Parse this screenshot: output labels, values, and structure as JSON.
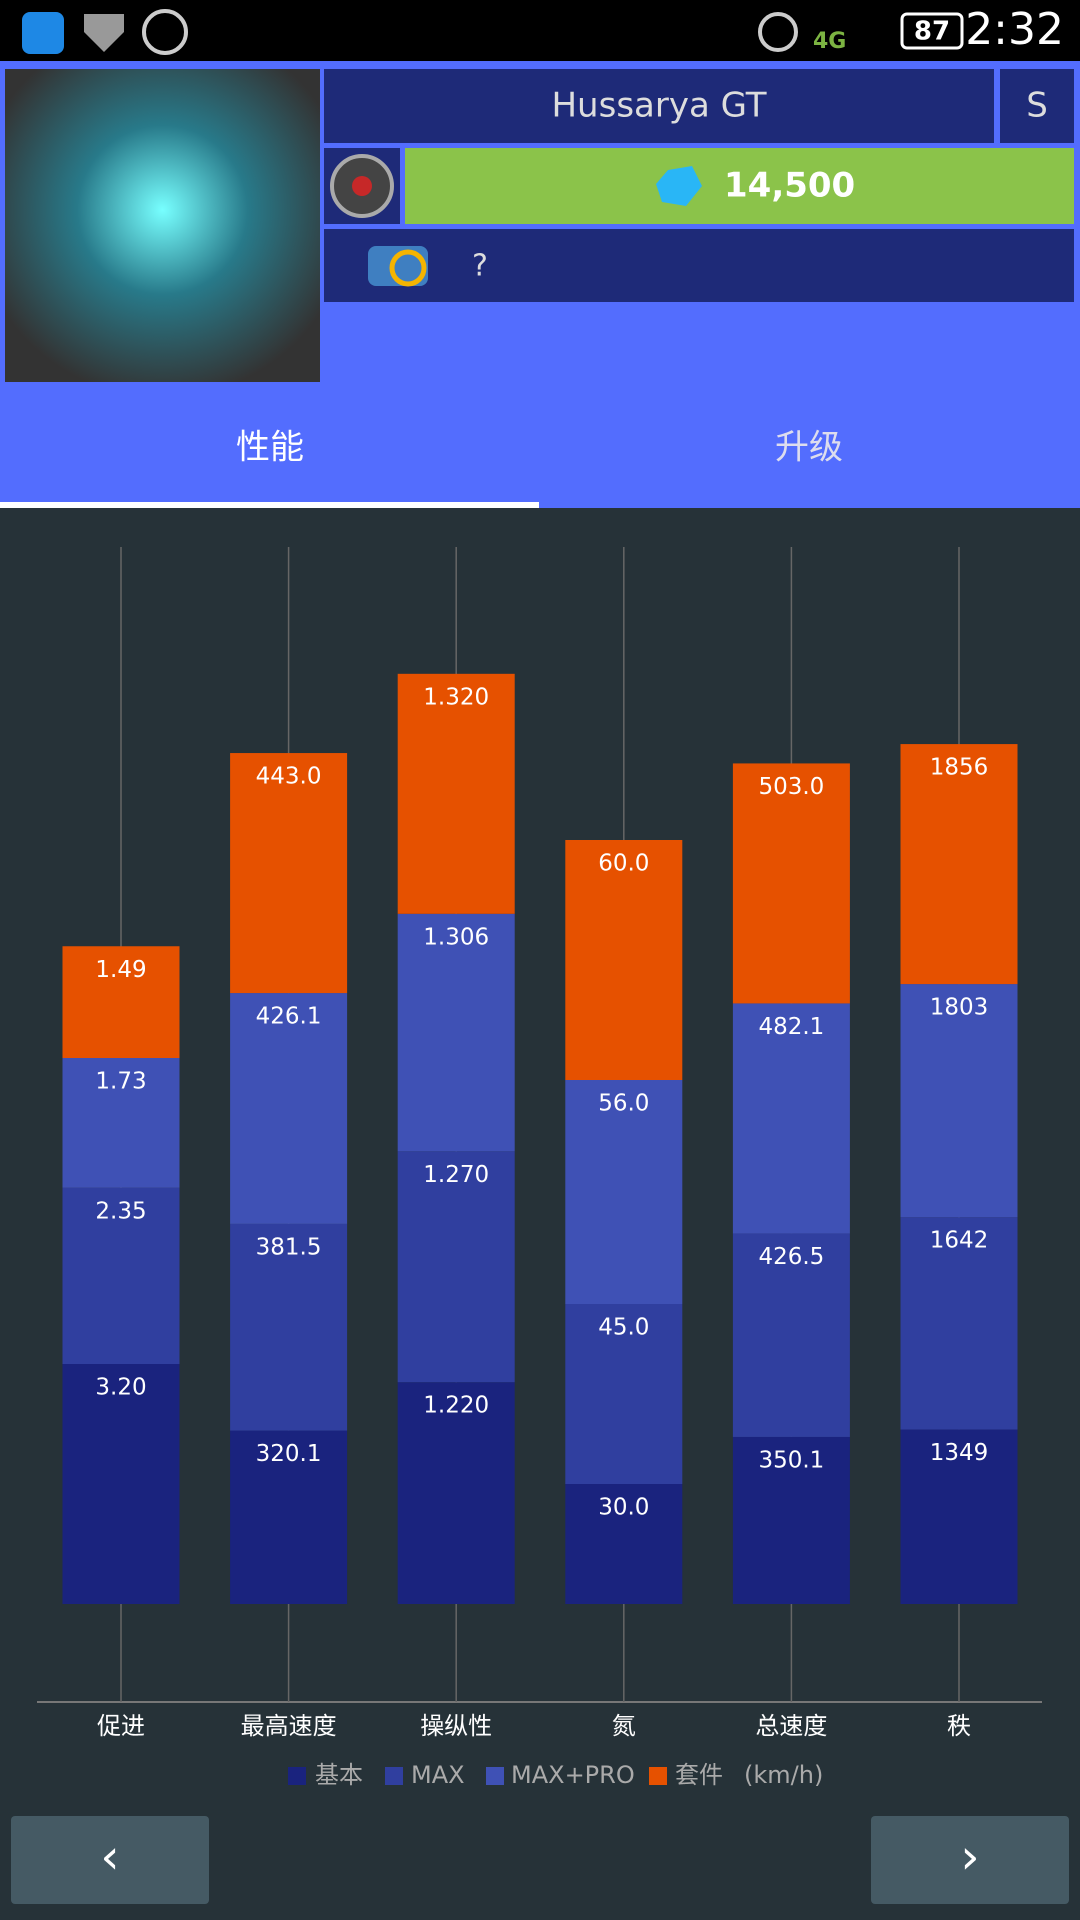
{
  "status_bar": {
    "network": "4G",
    "battery": "87",
    "time": "2:32"
  },
  "header": {
    "car_name": "Hussarya GT",
    "car_class": "S",
    "price": "14,500",
    "unknown": "?"
  },
  "tabs": [
    "性能",
    "升级"
  ],
  "chart_data": {
    "type": "bar",
    "categories": [
      "促进",
      "最高速度",
      "操纵性",
      "氮",
      "总速度",
      "秩"
    ],
    "series": [
      {
        "name": "基本",
        "color": "#1a237e",
        "values": [
          3.2,
          320.1,
          1.22,
          30,
          350.1,
          1349
        ],
        "value_labels": [
          "3.20",
          "320.1",
          "1.220",
          "30.0",
          "350.1",
          "1349"
        ]
      },
      {
        "name": "MAX",
        "color": "#303f9f",
        "values": [
          2.35,
          381.5,
          1.27,
          45,
          426.5,
          1642
        ],
        "value_labels": [
          "2.35",
          "381.5",
          "1.270",
          "45.0",
          "426.5",
          "1642"
        ]
      },
      {
        "name": "MAX+PRO",
        "color": "#3f51b5",
        "values": [
          1.73,
          426.1,
          1.306,
          56,
          482.1,
          1803
        ],
        "value_labels": [
          "1.73",
          "426.1",
          "1.306",
          "56.0",
          "482.1",
          "1803"
        ]
      },
      {
        "name": "套件",
        "color": "#e65100",
        "values": [
          1.49,
          443,
          1.32,
          60,
          503,
          1856
        ],
        "value_labels": [
          "1.49",
          "443.0",
          "1.320",
          "60.0",
          "503.0",
          "1856"
        ]
      }
    ],
    "unit": "(km/h)"
  },
  "nav": {
    "prev": "‹",
    "next": "›"
  }
}
